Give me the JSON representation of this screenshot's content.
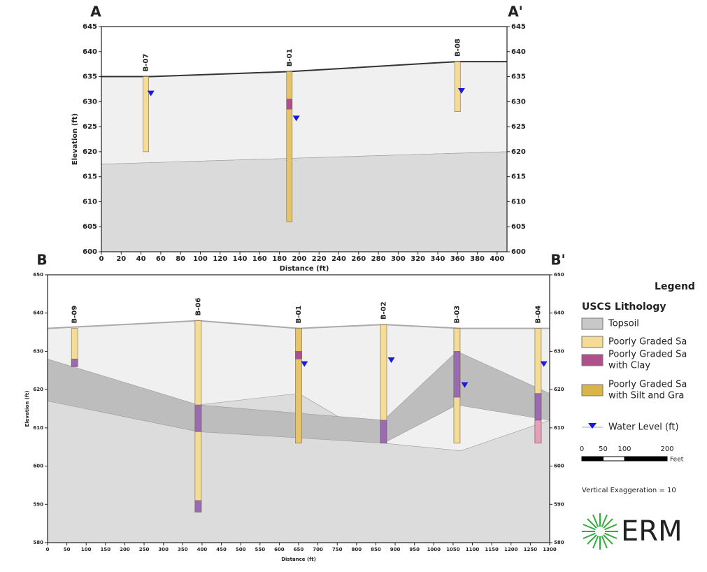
{
  "chart_data": [
    {
      "type": "cross-section",
      "left_label": "A",
      "right_label": "A'",
      "x_label": "Distance (ft)",
      "y_label": "Elevation (ft)",
      "xlim": [
        0,
        410
      ],
      "xticks": [
        0,
        20,
        40,
        60,
        80,
        100,
        120,
        140,
        160,
        180,
        200,
        220,
        240,
        260,
        280,
        300,
        320,
        340,
        360,
        380,
        400
      ],
      "ylim": [
        600,
        645
      ],
      "yticks": [
        600,
        605,
        610,
        615,
        620,
        625,
        630,
        635,
        640,
        645
      ],
      "ground": {
        "color": "#333333",
        "x": [
          0,
          50,
          190,
          360,
          410
        ],
        "y": [
          635,
          635,
          636,
          638,
          638
        ]
      },
      "regions": [
        {
          "color": "#f0f0f0",
          "x": [
            0,
            50,
            190,
            360,
            410,
            410,
            0
          ],
          "y": [
            635,
            635,
            636,
            638,
            638,
            620,
            617.5
          ]
        },
        {
          "color": "#dadada",
          "x": [
            0,
            410,
            410,
            0
          ],
          "y": [
            617.5,
            620,
            600,
            600
          ]
        }
      ],
      "boreholes": [
        {
          "name": "B-07",
          "x": 45,
          "top": 635,
          "bottom": 620,
          "color": "#f5dc96",
          "intervals": [],
          "water_level": {
            "x": 50,
            "y": 631.5
          }
        },
        {
          "name": "B-01",
          "x": 190,
          "top": 636,
          "bottom": 606,
          "color": "#e6c46a",
          "intervals": [
            {
              "top": 630.5,
              "bottom": 628.5,
              "color": "#b0508a"
            }
          ],
          "water_level": {
            "x": 197,
            "y": 626.5
          }
        },
        {
          "name": "B-08",
          "x": 360,
          "top": 638,
          "bottom": 628,
          "color": "#f5dc96",
          "intervals": [],
          "water_level": {
            "x": 364,
            "y": 632
          }
        }
      ]
    },
    {
      "type": "cross-section",
      "left_label": "B",
      "right_label": "B'",
      "x_label": "Distance (ft)",
      "y_label": "Elevation (ft)",
      "xlim": [
        0,
        1300
      ],
      "xticks": [
        0,
        50,
        100,
        150,
        200,
        250,
        300,
        350,
        400,
        450,
        500,
        550,
        600,
        650,
        700,
        750,
        800,
        850,
        900,
        950,
        1000,
        1050,
        1100,
        1150,
        1200,
        1250,
        1300
      ],
      "ylim": [
        580,
        650
      ],
      "yticks": [
        580,
        590,
        600,
        610,
        620,
        630,
        640,
        650
      ],
      "ground": {
        "color": "#aaaaaa",
        "x": [
          0,
          390,
          650,
          870,
          1070,
          1300
        ],
        "y": [
          636,
          638,
          636,
          637,
          636,
          636
        ]
      },
      "regions": [
        {
          "color": "#f0f0f0",
          "x": [
            0,
            390,
            650,
            870,
            1070,
            1300,
            1300,
            0
          ],
          "y": [
            636,
            638,
            636,
            637,
            636,
            636,
            580,
            580
          ]
        },
        {
          "color": "#dcdcdc",
          "x": [
            0,
            390,
            650,
            870,
            1070,
            1300,
            1300,
            0
          ],
          "y": [
            617,
            616,
            619,
            606,
            604,
            612,
            580,
            580
          ]
        },
        {
          "color": "#bdbdbd",
          "x": [
            0,
            390,
            870,
            1060,
            1300,
            1300,
            1060,
            870,
            390,
            0
          ],
          "y": [
            628,
            616,
            612,
            630,
            619,
            612,
            616,
            606,
            609,
            617
          ]
        }
      ],
      "boreholes": [
        {
          "name": "B-09",
          "x": 70,
          "top": 636,
          "bottom": 626,
          "color": "#f5dc96",
          "intervals": [
            {
              "top": 628,
              "bottom": 626,
              "color": "#9b6bb0"
            }
          ],
          "water_level": null
        },
        {
          "name": "B-06",
          "x": 390,
          "top": 638,
          "bottom": 588,
          "color": "#f5dc96",
          "intervals": [
            {
              "top": 616,
              "bottom": 609,
              "color": "#9b6bb0"
            },
            {
              "top": 591,
              "bottom": 588,
              "color": "#9b6bb0"
            }
          ],
          "water_level": null
        },
        {
          "name": "B-01",
          "x": 650,
          "top": 636,
          "bottom": 606,
          "color": "#e6c46a",
          "intervals": [
            {
              "top": 630,
              "bottom": 628,
              "color": "#b0508a"
            }
          ],
          "water_level": {
            "x": 665,
            "y": 626.5
          }
        },
        {
          "name": "B-02",
          "x": 870,
          "top": 637,
          "bottom": 606,
          "color": "#f5dc96",
          "intervals": [
            {
              "top": 612,
              "bottom": 606,
              "color": "#9b6bb0"
            }
          ],
          "water_level": {
            "x": 890,
            "y": 627.5
          }
        },
        {
          "name": "B-03",
          "x": 1060,
          "top": 636,
          "bottom": 606,
          "color": "#f5dc96",
          "intervals": [
            {
              "top": 630,
              "bottom": 618,
              "color": "#9b6bb0"
            }
          ],
          "water_level": {
            "x": 1080,
            "y": 621
          }
        },
        {
          "name": "B-04",
          "x": 1270,
          "top": 636,
          "bottom": 606,
          "color": "#f5dc96",
          "intervals": [
            {
              "top": 619,
              "bottom": 612,
              "color": "#9b6bb0"
            },
            {
              "top": 612,
              "bottom": 606,
              "color": "#e7a0b8"
            }
          ],
          "water_level": {
            "x": 1285,
            "y": 626.5
          }
        }
      ]
    }
  ],
  "legend": {
    "title": "Legend",
    "subtitle": "USCS Lithology",
    "entries": [
      {
        "label": [
          "Topsoil"
        ],
        "color": "#c8c8c8"
      },
      {
        "label": [
          "Poorly Graded Sa"
        ],
        "color": "#f5dc96"
      },
      {
        "label": [
          "Poorly Graded Sa",
          "with Clay"
        ],
        "color": "#b0508a"
      },
      {
        "label": [
          "Poorly Graded Sa",
          "with Silt and Gra"
        ],
        "color": "#d9b44a"
      }
    ],
    "water_label": "Water Level (ft)",
    "water_color": "#1a1adc"
  },
  "scale_bar": {
    "ticks": [
      0,
      50,
      100,
      200
    ],
    "unit": "Feet"
  },
  "note": "Vertical Exaggeration = 10",
  "logo": "ERM"
}
